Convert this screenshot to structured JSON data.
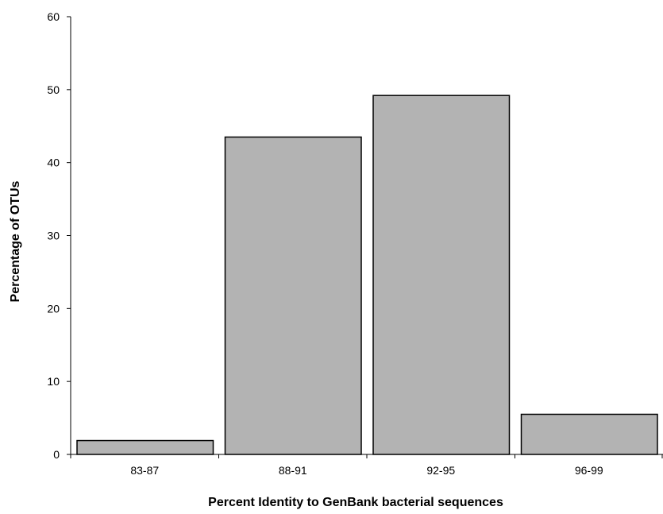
{
  "chart_data": {
    "type": "bar",
    "title": "",
    "xlabel": "Percent Identity to GenBank bacterial sequences",
    "ylabel": "Percentage of OTUs",
    "categories": [
      "83-87",
      "88-91",
      "92-95",
      "96-99"
    ],
    "values": [
      1.9,
      43.5,
      49.2,
      5.5
    ],
    "ylim": [
      0,
      60
    ],
    "yticks": [
      0,
      10,
      20,
      30,
      40,
      50,
      60
    ],
    "grid": false,
    "legend": "none",
    "colors": {
      "bar_fill": "#b3b3b3",
      "bar_stroke": "#000000",
      "axis": "#000000"
    }
  }
}
